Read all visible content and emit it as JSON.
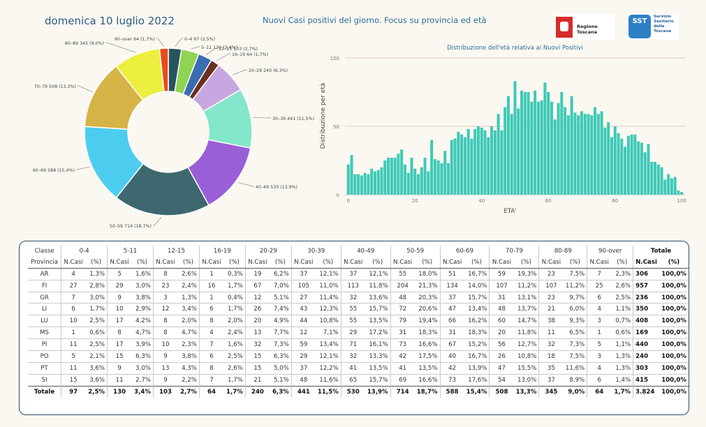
{
  "header": {
    "date": "domenica 10 luglio 2022",
    "title": "Nuovi Casi positivi del giorno. Focus su provincia ed età",
    "logo_rt": "Regione Toscana",
    "logo_sst_badge": "SST",
    "logo_sst_text": "Servizio\nSanitario\ndella\nToscana"
  },
  "chart_data": [
    {
      "type": "pie",
      "title": "",
      "slices": [
        {
          "label": "0-4",
          "value": 97,
          "pct": "2,5%",
          "color": "#27555f"
        },
        {
          "label": "5-11",
          "value": 130,
          "pct": "3,4%",
          "color": "#8fd553"
        },
        {
          "label": "12-15",
          "value": 103,
          "pct": "2,7%",
          "color": "#3a6db1"
        },
        {
          "label": "16-19",
          "value": 64,
          "pct": "1,7%",
          "color": "#6a3020"
        },
        {
          "label": "20-29",
          "value": 240,
          "pct": "6,3%",
          "color": "#c8a7e0"
        },
        {
          "label": "30-39",
          "value": 441,
          "pct": "11,5%",
          "color": "#84e6cb"
        },
        {
          "label": "40-49",
          "value": 530,
          "pct": "13,9%",
          "color": "#9a5fd7"
        },
        {
          "label": "50-59",
          "value": 714,
          "pct": "18,7%",
          "color": "#3e6870"
        },
        {
          "label": "60-69",
          "value": 588,
          "pct": "15,4%",
          "color": "#4ccdf0"
        },
        {
          "label": "70-79",
          "value": 508,
          "pct": "13,3%",
          "color": "#d6b346"
        },
        {
          "label": "80-89",
          "value": 345,
          "pct": "9,0%",
          "color": "#ecef3e"
        },
        {
          "label": "90-over",
          "value": 64,
          "pct": "1,7%",
          "color": "#ea4a1c"
        }
      ]
    },
    {
      "type": "bar",
      "title": "Distribuzione dell'età relativa ai Nuovi Positivi",
      "xlabel": "ETA'",
      "ylabel": "Distribuzione per età",
      "xlim": [
        -1,
        101
      ],
      "ylim": [
        0,
        100
      ],
      "xticks": [
        0,
        20,
        40,
        60,
        80,
        100
      ],
      "yticks": [
        0,
        50,
        100
      ],
      "color": "#3ec9b7",
      "x": [
        0,
        1,
        2,
        3,
        4,
        5,
        6,
        7,
        8,
        9,
        10,
        11,
        12,
        13,
        14,
        15,
        16,
        17,
        18,
        19,
        20,
        21,
        22,
        23,
        24,
        25,
        26,
        27,
        28,
        29,
        30,
        31,
        32,
        33,
        34,
        35,
        36,
        37,
        38,
        39,
        40,
        41,
        42,
        43,
        44,
        45,
        46,
        47,
        48,
        49,
        50,
        51,
        52,
        53,
        54,
        55,
        56,
        57,
        58,
        59,
        60,
        61,
        62,
        63,
        64,
        65,
        66,
        67,
        68,
        69,
        70,
        71,
        72,
        73,
        74,
        75,
        76,
        77,
        78,
        79,
        80,
        81,
        82,
        83,
        84,
        85,
        86,
        87,
        88,
        89,
        90,
        91,
        92,
        93,
        94,
        95,
        96,
        97,
        98,
        99,
        100
      ],
      "values": [
        22,
        29,
        15,
        15,
        14,
        16,
        15,
        19,
        17,
        18,
        20,
        25,
        27,
        27,
        27,
        30,
        33,
        22,
        16,
        27,
        19,
        15,
        20,
        27,
        17,
        40,
        26,
        25,
        23,
        32,
        23,
        40,
        41,
        46,
        44,
        42,
        48,
        41,
        48,
        50,
        49,
        47,
        42,
        50,
        47,
        59,
        47,
        64,
        72,
        59,
        83,
        63,
        76,
        75,
        75,
        68,
        76,
        68,
        69,
        82,
        75,
        68,
        55,
        67,
        75,
        64,
        58,
        72,
        60,
        58,
        61,
        59,
        59,
        58,
        64,
        59,
        61,
        49,
        53,
        42,
        50,
        45,
        41,
        35,
        43,
        44,
        44,
        39,
        38,
        31,
        37,
        24,
        24,
        22,
        20,
        11,
        15,
        12,
        13,
        3,
        2
      ]
    },
    {
      "type": "table",
      "age_classes": [
        "0-4",
        "5-11",
        "12-15",
        "16-19",
        "20-29",
        "30-39",
        "40-49",
        "50-59",
        "60-69",
        "70-79",
        "80-89",
        "90-over"
      ],
      "col_header_class": "Classe",
      "col_header_prov": "Provincia",
      "col_header_total": "Totale",
      "sub_ncasi": "N.Casi",
      "sub_pct": "(%)",
      "rows": [
        {
          "prov": "AR",
          "cells": [
            [
              "4",
              "1,3%"
            ],
            [
              "5",
              "1,6%"
            ],
            [
              "8",
              "2,6%"
            ],
            [
              "1",
              "0,3%"
            ],
            [
              "19",
              "6,2%"
            ],
            [
              "37",
              "12,1%"
            ],
            [
              "37",
              "12,1%"
            ],
            [
              "55",
              "18,0%"
            ],
            [
              "51",
              "16,7%"
            ],
            [
              "59",
              "19,3%"
            ],
            [
              "23",
              "7,5%"
            ],
            [
              "7",
              "2,3%"
            ]
          ],
          "tot": "306",
          "totpct": "100,0%"
        },
        {
          "prov": "FI",
          "cells": [
            [
              "27",
              "2,8%"
            ],
            [
              "29",
              "3,0%"
            ],
            [
              "23",
              "2,4%"
            ],
            [
              "16",
              "1,7%"
            ],
            [
              "67",
              "7,0%"
            ],
            [
              "105",
              "11,0%"
            ],
            [
              "113",
              "11,8%"
            ],
            [
              "204",
              "21,3%"
            ],
            [
              "134",
              "14,0%"
            ],
            [
              "107",
              "11,2%"
            ],
            [
              "107",
              "11,2%"
            ],
            [
              "25",
              "2,6%"
            ]
          ],
          "tot": "957",
          "totpct": "100,0%"
        },
        {
          "prov": "GR",
          "cells": [
            [
              "7",
              "3,0%"
            ],
            [
              "9",
              "3,8%"
            ],
            [
              "3",
              "1,3%"
            ],
            [
              "1",
              "0,4%"
            ],
            [
              "12",
              "5,1%"
            ],
            [
              "27",
              "11,4%"
            ],
            [
              "32",
              "13,6%"
            ],
            [
              "48",
              "20,3%"
            ],
            [
              "37",
              "15,7%"
            ],
            [
              "31",
              "13,1%"
            ],
            [
              "23",
              "9,7%"
            ],
            [
              "6",
              "2,5%"
            ]
          ],
          "tot": "236",
          "totpct": "100,0%"
        },
        {
          "prov": "LI",
          "cells": [
            [
              "6",
              "1,7%"
            ],
            [
              "10",
              "2,9%"
            ],
            [
              "12",
              "3,4%"
            ],
            [
              "6",
              "1,7%"
            ],
            [
              "26",
              "7,4%"
            ],
            [
              "43",
              "12,3%"
            ],
            [
              "55",
              "15,7%"
            ],
            [
              "72",
              "20,6%"
            ],
            [
              "47",
              "13,4%"
            ],
            [
              "48",
              "13,7%"
            ],
            [
              "21",
              "6,0%"
            ],
            [
              "4",
              "1,1%"
            ]
          ],
          "tot": "350",
          "totpct": "100,0%"
        },
        {
          "prov": "LU",
          "cells": [
            [
              "10",
              "2,5%"
            ],
            [
              "17",
              "4,2%"
            ],
            [
              "8",
              "2,0%"
            ],
            [
              "8",
              "2,0%"
            ],
            [
              "20",
              "4,9%"
            ],
            [
              "44",
              "10,8%"
            ],
            [
              "55",
              "13,5%"
            ],
            [
              "79",
              "19,4%"
            ],
            [
              "66",
              "16,2%"
            ],
            [
              "60",
              "14,7%"
            ],
            [
              "38",
              "9,3%"
            ],
            [
              "3",
              "0,7%"
            ]
          ],
          "tot": "408",
          "totpct": "100,0%"
        },
        {
          "prov": "MS",
          "cells": [
            [
              "1",
              "0,6%"
            ],
            [
              "8",
              "4,7%"
            ],
            [
              "8",
              "4,7%"
            ],
            [
              "4",
              "2,4%"
            ],
            [
              "13",
              "7,7%"
            ],
            [
              "12",
              "7,1%"
            ],
            [
              "29",
              "17,2%"
            ],
            [
              "31",
              "18,3%"
            ],
            [
              "31",
              "18,3%"
            ],
            [
              "20",
              "11,8%"
            ],
            [
              "11",
              "6,5%"
            ],
            [
              "1",
              "0,6%"
            ]
          ],
          "tot": "169",
          "totpct": "100,0%"
        },
        {
          "prov": "PI",
          "cells": [
            [
              "11",
              "2,5%"
            ],
            [
              "17",
              "3,9%"
            ],
            [
              "10",
              "2,3%"
            ],
            [
              "7",
              "1,6%"
            ],
            [
              "32",
              "7,3%"
            ],
            [
              "59",
              "13,4%"
            ],
            [
              "71",
              "16,1%"
            ],
            [
              "73",
              "16,6%"
            ],
            [
              "67",
              "15,2%"
            ],
            [
              "56",
              "12,7%"
            ],
            [
              "32",
              "7,3%"
            ],
            [
              "5",
              "1,1%"
            ]
          ],
          "tot": "440",
          "totpct": "100,0%"
        },
        {
          "prov": "PO",
          "cells": [
            [
              "5",
              "2,1%"
            ],
            [
              "15",
              "6,3%"
            ],
            [
              "9",
              "3,8%"
            ],
            [
              "6",
              "2,5%"
            ],
            [
              "15",
              "6,3%"
            ],
            [
              "29",
              "12,1%"
            ],
            [
              "32",
              "13,3%"
            ],
            [
              "42",
              "17,5%"
            ],
            [
              "40",
              "16,7%"
            ],
            [
              "26",
              "10,8%"
            ],
            [
              "18",
              "7,5%"
            ],
            [
              "3",
              "1,3%"
            ]
          ],
          "tot": "240",
          "totpct": "100,0%"
        },
        {
          "prov": "PT",
          "cells": [
            [
              "11",
              "3,6%"
            ],
            [
              "9",
              "3,0%"
            ],
            [
              "13",
              "4,3%"
            ],
            [
              "8",
              "2,6%"
            ],
            [
              "15",
              "5,0%"
            ],
            [
              "37",
              "12,2%"
            ],
            [
              "41",
              "13,5%"
            ],
            [
              "41",
              "13,5%"
            ],
            [
              "42",
              "13,9%"
            ],
            [
              "47",
              "15,5%"
            ],
            [
              "35",
              "11,6%"
            ],
            [
              "4",
              "1,3%"
            ]
          ],
          "tot": "303",
          "totpct": "100,0%"
        },
        {
          "prov": "SI",
          "cells": [
            [
              "15",
              "3,6%"
            ],
            [
              "11",
              "2,7%"
            ],
            [
              "9",
              "2,2%"
            ],
            [
              "7",
              "1,7%"
            ],
            [
              "21",
              "5,1%"
            ],
            [
              "48",
              "11,6%"
            ],
            [
              "65",
              "15,7%"
            ],
            [
              "69",
              "16,6%"
            ],
            [
              "73",
              "17,6%"
            ],
            [
              "54",
              "13,0%"
            ],
            [
              "37",
              "8,9%"
            ],
            [
              "6",
              "1,4%"
            ]
          ],
          "tot": "415",
          "totpct": "100,0%"
        }
      ],
      "total": {
        "prov": "Totale",
        "cells": [
          [
            "97",
            "2,5%"
          ],
          [
            "130",
            "3,4%"
          ],
          [
            "103",
            "2,7%"
          ],
          [
            "64",
            "1,7%"
          ],
          [
            "240",
            "6,3%"
          ],
          [
            "441",
            "11,5%"
          ],
          [
            "530",
            "13,9%"
          ],
          [
            "714",
            "18,7%"
          ],
          [
            "588",
            "15,4%"
          ],
          [
            "508",
            "13,3%"
          ],
          [
            "345",
            "9,0%"
          ],
          [
            "64",
            "1,7%"
          ]
        ],
        "tot": "3.824",
        "totpct": "100,0%"
      }
    }
  ]
}
